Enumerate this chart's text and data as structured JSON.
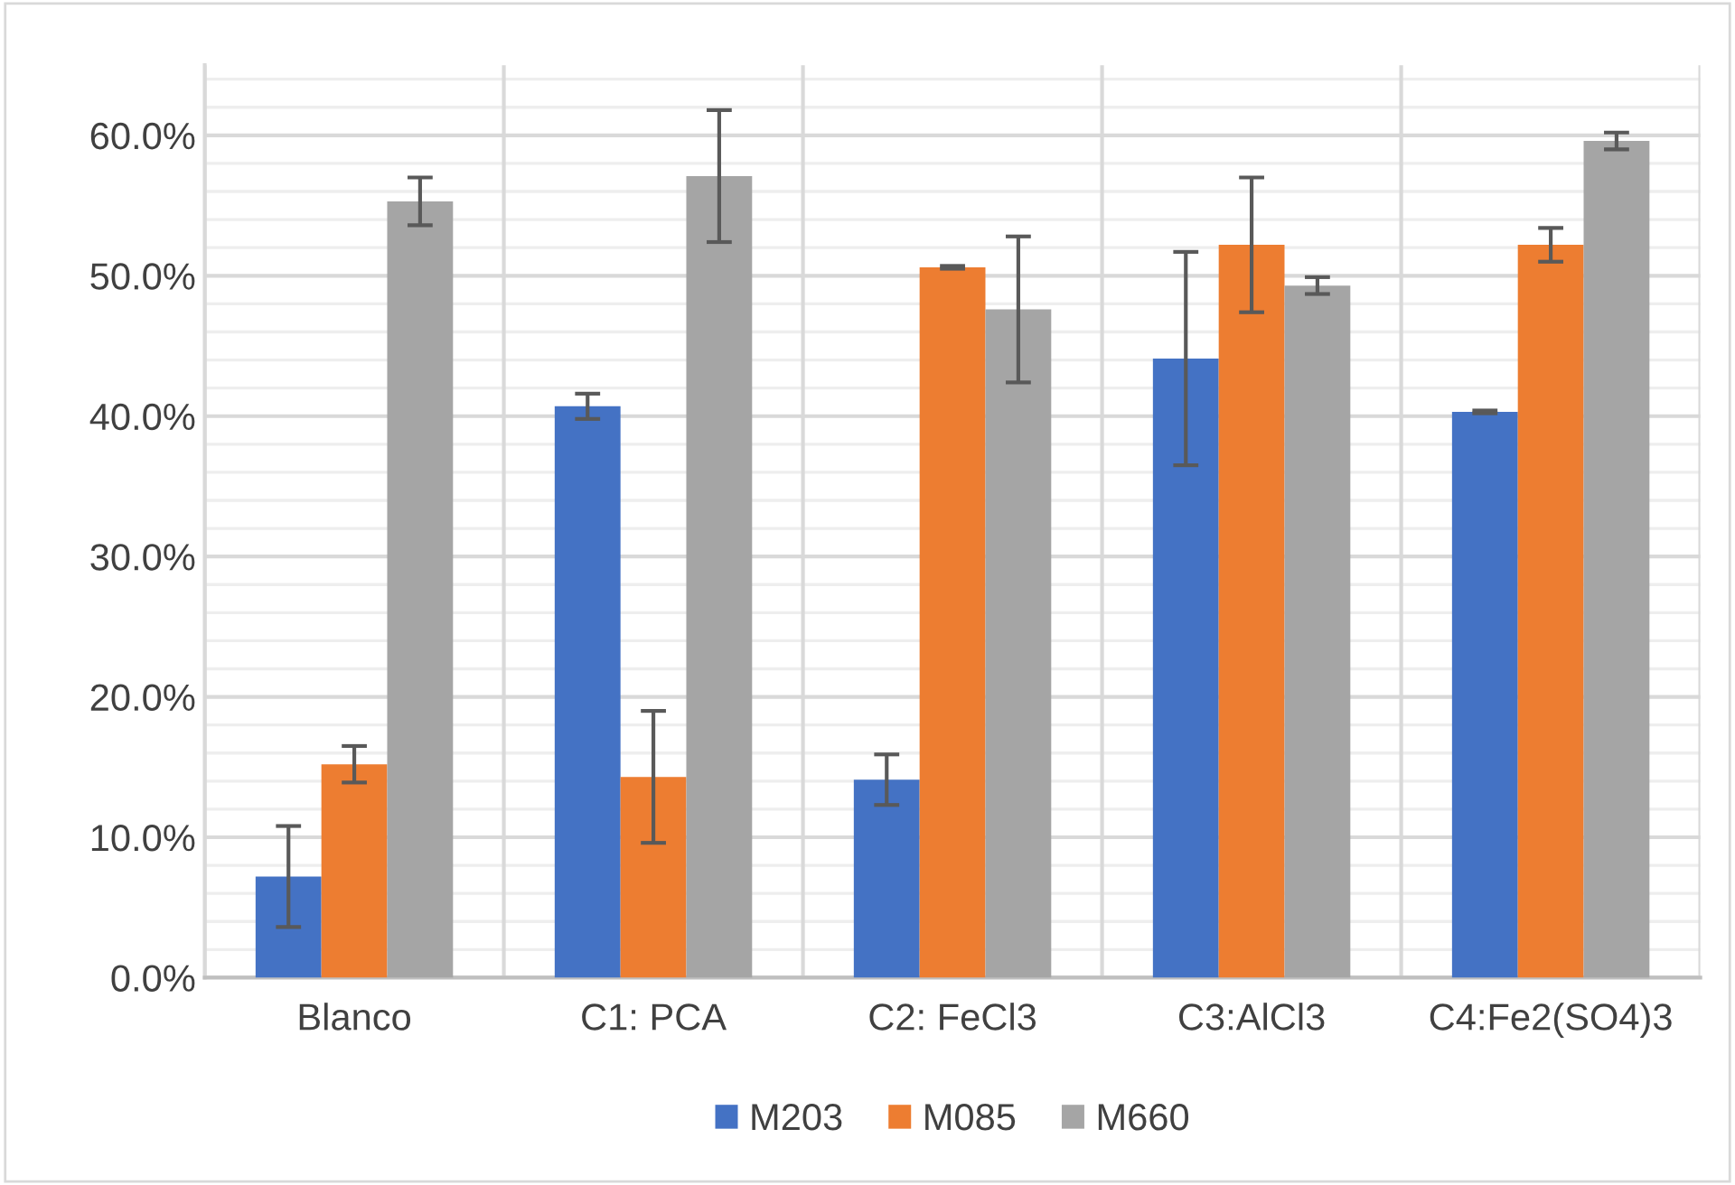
{
  "chart_data": {
    "type": "bar",
    "categories": [
      "Blanco",
      "C1: PCA",
      "C2: FeCl3",
      "C3:AlCl3",
      "C4:Fe2(SO4)3"
    ],
    "series": [
      {
        "name": "M203",
        "color": "#4472c4",
        "values": [
          7.2,
          40.7,
          14.1,
          44.1,
          40.3
        ],
        "errors": [
          3.6,
          0.9,
          1.8,
          7.6,
          0.1
        ]
      },
      {
        "name": "M085",
        "color": "#ed7d31",
        "values": [
          15.2,
          14.3,
          50.6,
          52.2,
          52.2
        ],
        "errors": [
          1.3,
          4.7,
          0.1,
          4.8,
          1.2
        ]
      },
      {
        "name": "M660",
        "color": "#a5a5a5",
        "values": [
          55.3,
          57.1,
          47.6,
          49.3,
          59.6
        ],
        "errors": [
          1.7,
          4.7,
          5.2,
          0.6,
          0.6
        ]
      }
    ],
    "ylim": [
      0,
      65
    ],
    "yticks": [
      {
        "value": 0,
        "label": "0.0%"
      },
      {
        "value": 2,
        "label": null
      },
      {
        "value": 4,
        "label": null
      },
      {
        "value": 6,
        "label": null
      },
      {
        "value": 8,
        "label": null
      },
      {
        "value": 10,
        "label": "10.0%"
      },
      {
        "value": 12,
        "label": null
      },
      {
        "value": 14,
        "label": null
      },
      {
        "value": 16,
        "label": null
      },
      {
        "value": 18,
        "label": null
      },
      {
        "value": 20,
        "label": "20.0%"
      },
      {
        "value": 22,
        "label": null
      },
      {
        "value": 24,
        "label": null
      },
      {
        "value": 26,
        "label": null
      },
      {
        "value": 28,
        "label": null
      },
      {
        "value": 30,
        "label": "30.0%"
      },
      {
        "value": 32,
        "label": null
      },
      {
        "value": 34,
        "label": null
      },
      {
        "value": 36,
        "label": null
      },
      {
        "value": 38,
        "label": null
      },
      {
        "value": 40,
        "label": "40.0%"
      },
      {
        "value": 42,
        "label": null
      },
      {
        "value": 44,
        "label": null
      },
      {
        "value": 46,
        "label": null
      },
      {
        "value": 48,
        "label": null
      },
      {
        "value": 50,
        "label": "50.0%"
      },
      {
        "value": 52,
        "label": null
      },
      {
        "value": 54,
        "label": null
      },
      {
        "value": 56,
        "label": null
      },
      {
        "value": 58,
        "label": null
      },
      {
        "value": 60,
        "label": "60.0%"
      },
      {
        "value": 62,
        "label": null
      },
      {
        "value": 64,
        "label": null
      }
    ],
    "grid": true,
    "legend": "bottom"
  }
}
